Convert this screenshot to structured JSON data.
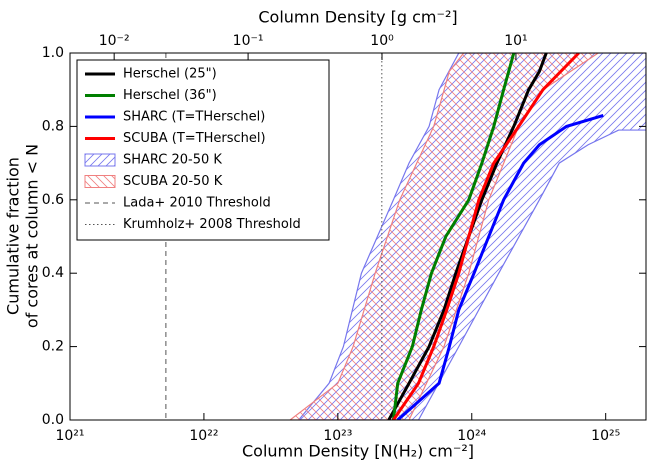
{
  "chart_data": {
    "type": "cdf",
    "xlabel": "Column Density [N(H₂) cm⁻²]",
    "x2label": "Column Density [g cm⁻²]",
    "ylabel": [
      "Cumulative fraction",
      "of cores at column < N"
    ],
    "xscale": "log",
    "xlim": [
      1e+21,
      2e+25
    ],
    "xticks": [
      {
        "value": 1e+21,
        "label": "10²¹"
      },
      {
        "value": 1e+22,
        "label": "10²²"
      },
      {
        "value": 1e+23,
        "label": "10²³"
      },
      {
        "value": 1e+24,
        "label": "10²⁴"
      },
      {
        "value": 1e+25,
        "label": "10²⁵"
      }
    ],
    "x2lim": [
      0.00468,
      93.6
    ],
    "x2ticks": [
      {
        "value": 0.01,
        "label": "10⁻²"
      },
      {
        "value": 0.1,
        "label": "10⁻¹"
      },
      {
        "value": 1,
        "label": "10⁰"
      },
      {
        "value": 10,
        "label": "10¹"
      }
    ],
    "ylim": [
      0,
      1
    ],
    "yticks": [
      {
        "value": 0,
        "label": "0.0"
      },
      {
        "value": 0.2,
        "label": "0.2"
      },
      {
        "value": 0.4,
        "label": "0.4"
      },
      {
        "value": 0.6,
        "label": "0.6"
      },
      {
        "value": 0.8,
        "label": "0.8"
      },
      {
        "value": 1,
        "label": "1.0"
      }
    ],
    "legend": "upper left",
    "series": [
      {
        "name": "Herschel (25\")",
        "color": "#000000",
        "x": [
          2.4e+23,
          3.4e+23,
          4.8e+23,
          6.2e+23,
          7.6e+23,
          9.5e+23,
          1.19e+24,
          1.54e+24,
          2.06e+24,
          2.66e+24,
          3.2e+24,
          3.6e+24
        ],
        "values": [
          0,
          0.1,
          0.2,
          0.3,
          0.4,
          0.5,
          0.6,
          0.7,
          0.8,
          0.9,
          0.95,
          1.0
        ]
      },
      {
        "name": "Herschel (36\")",
        "color": "#007f00",
        "x": [
          2.6e+23,
          2.8e+23,
          3.6e+23,
          4.2e+23,
          5e+23,
          6.4e+23,
          9.5e+23,
          1.19e+24,
          1.46e+24,
          1.73e+24,
          2.06e+24
        ],
        "values": [
          0,
          0.1,
          0.2,
          0.3,
          0.4,
          0.5,
          0.6,
          0.7,
          0.8,
          0.9,
          1.0
        ]
      },
      {
        "name": "SHARC (T=THerschel)",
        "color": "#0000ff",
        "x": [
          2.8e+23,
          5.7e+23,
          6.8e+23,
          8e+23,
          1.04e+24,
          1.34e+24,
          1.73e+24,
          2.44e+24,
          3.2e+24,
          5.1e+24,
          9.6e+24
        ],
        "values": [
          0,
          0.1,
          0.2,
          0.3,
          0.4,
          0.5,
          0.6,
          0.7,
          0.75,
          0.8,
          0.83
        ]
      },
      {
        "name": "SCUBA (T=THerschel)",
        "color": "#ff0000",
        "x": [
          2.6e+23,
          4e+23,
          5.2e+23,
          6.5e+23,
          8e+23,
          9.5e+23,
          1.13e+24,
          1.46e+24,
          2.24e+24,
          3.4e+24,
          6.3e+24
        ],
        "values": [
          0,
          0.1,
          0.2,
          0.3,
          0.4,
          0.5,
          0.6,
          0.7,
          0.8,
          0.9,
          1.0
        ]
      }
    ],
    "bands": [
      {
        "name": "SHARC 20-50 K",
        "color": "#7777ee",
        "hatch": "/",
        "low_x": [
          5.1e+22,
          8.6e+22,
          1.1e+23,
          1.5e+23,
          2.6e+23,
          3.4e+23,
          4.8e+23,
          5.7e+23,
          8e+23,
          2e+25
        ],
        "low_values": [
          0,
          0.1,
          0.2,
          0.4,
          0.6,
          0.7,
          0.8,
          0.9,
          1.0,
          1.0
        ],
        "high_x": [
          4e+23,
          8e+23,
          1.59e+24,
          3.2e+24,
          4.5e+24,
          7.4e+24,
          1.25e+25,
          2e+25
        ],
        "high_values": [
          0,
          0.2,
          0.4,
          0.6,
          0.7,
          0.75,
          0.79,
          0.79
        ]
      },
      {
        "name": "SCUBA 20-50 K",
        "color": "#f08080",
        "hatch": "\\",
        "low_x": [
          4.4e+22,
          1e+23,
          1.3e+23,
          1.9e+23,
          2.9e+23,
          5.2e+23,
          6.8e+23,
          8.7e+23
        ],
        "low_values": [
          0,
          0.1,
          0.2,
          0.4,
          0.6,
          0.8,
          0.95,
          1.0
        ],
        "high_x": [
          3.4e+23,
          6.2e+23,
          9.5e+23,
          1.34e+24,
          2.24e+24,
          3.4e+24,
          8.8e+24
        ],
        "high_values": [
          0,
          0.2,
          0.4,
          0.6,
          0.8,
          0.9,
          1.0
        ]
      }
    ],
    "vlines": [
      {
        "name": "Lada+ 2010 Threshold",
        "x": 5.2e+21,
        "color": "#555555",
        "style": "dashed"
      },
      {
        "name": "Krumholz+ 2008 Threshold",
        "x": 2.13e+23,
        "color": "#555555",
        "style": "dotted"
      }
    ]
  }
}
